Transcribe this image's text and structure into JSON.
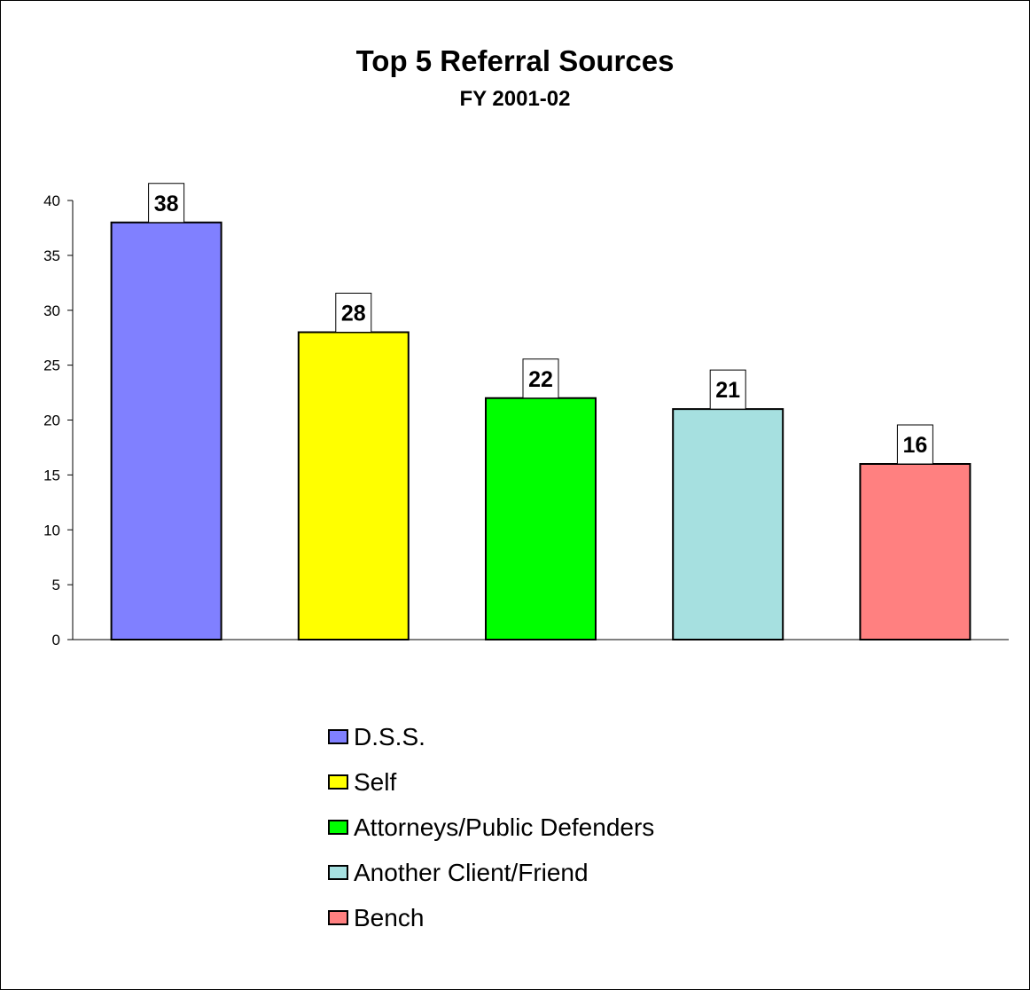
{
  "chart_data": {
    "type": "bar",
    "title": "Top 5 Referral Sources",
    "subtitle": "FY 2001-02",
    "categories": [
      "D.S.S.",
      "Self",
      "Attorneys/Public Defenders",
      "Another Client/Friend",
      "Bench"
    ],
    "values": [
      38,
      28,
      22,
      21,
      16
    ],
    "colors": [
      "#8080ff",
      "#ffff00",
      "#00ff00",
      "#a6e0e0",
      "#ff8080"
    ],
    "ylim": [
      0,
      40
    ],
    "yticks": [
      0,
      5,
      10,
      15,
      20,
      25,
      30,
      35,
      40
    ],
    "grid": false,
    "legend_position": "bottom-center",
    "data_labels": true
  }
}
